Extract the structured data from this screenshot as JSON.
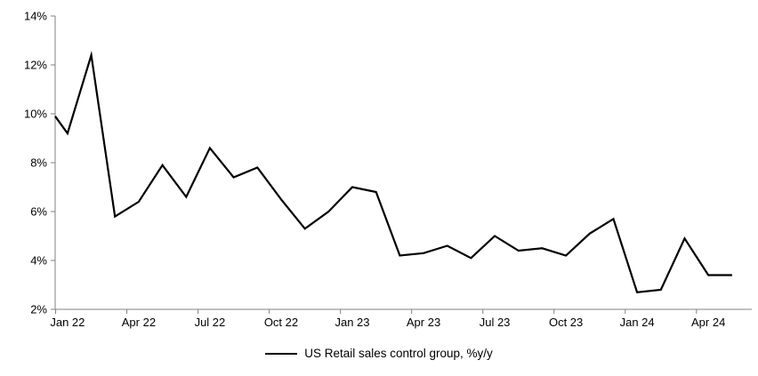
{
  "chart_data": {
    "type": "line",
    "title": "",
    "legend_label": "US Retail sales control group, %y/y",
    "legend_position": "bottom-center",
    "grid": false,
    "ylim": [
      2,
      14
    ],
    "y_tick_step": 2,
    "y_tick_labels": [
      "2%",
      "4%",
      "6%",
      "8%",
      "10%",
      "12%",
      "14%"
    ],
    "x_tick_labels": [
      "Jan 22",
      "Apr 22",
      "Jul 22",
      "Oct 22",
      "Jan 23",
      "Apr 23",
      "Jul 23",
      "Oct 23",
      "Jan 24",
      "Apr 24"
    ],
    "x_tick_every_months": 3,
    "categories": [
      "Jan 22",
      "Feb 22",
      "Mar 22",
      "Apr 22",
      "May 22",
      "Jun 22",
      "Jul 22",
      "Aug 22",
      "Sep 22",
      "Oct 22",
      "Nov 22",
      "Dec 22",
      "Jan 23",
      "Feb 23",
      "Mar 23",
      "Apr 23",
      "May 23",
      "Jun 23",
      "Jul 23",
      "Aug 23",
      "Sep 23",
      "Oct 23",
      "Nov 23",
      "Dec 23",
      "Jan 24",
      "Feb 24",
      "Mar 24",
      "Apr 24",
      "May 24"
    ],
    "series": [
      {
        "name": "US Retail sales control group, %y/y",
        "values": [
          9.2,
          12.4,
          5.8,
          6.4,
          7.9,
          6.6,
          8.6,
          7.4,
          7.8,
          6.5,
          5.3,
          6.0,
          7.0,
          6.8,
          4.2,
          4.3,
          4.6,
          4.1,
          5.0,
          4.4,
          4.5,
          4.2,
          5.1,
          5.7,
          2.7,
          2.8,
          4.9,
          3.4,
          3.4
        ]
      }
    ],
    "line_enters_plot_left_edge_at_value": 9.9,
    "line_color": "#000000",
    "axis_color": "#808080",
    "tick_label_color": "#000000"
  }
}
